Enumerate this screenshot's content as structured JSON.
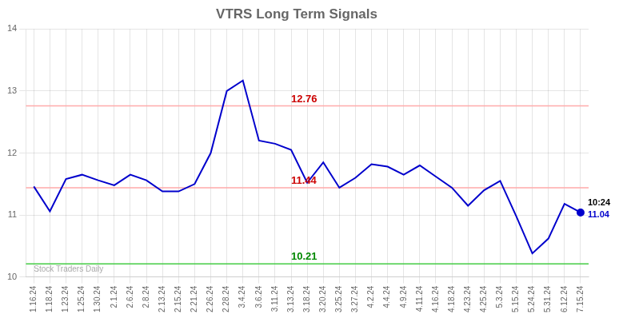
{
  "chart_data": {
    "type": "line",
    "title": "VTRS Long Term Signals",
    "categories": [
      "1.16.24",
      "1.18.24",
      "1.23.24",
      "1.25.24",
      "1.30.24",
      "2.1.24",
      "2.6.24",
      "2.8.24",
      "2.13.24",
      "2.15.24",
      "2.21.24",
      "2.26.24",
      "2.28.24",
      "3.4.24",
      "3.6.24",
      "3.11.24",
      "3.13.24",
      "3.18.24",
      "3.20.24",
      "3.25.24",
      "3.27.24",
      "4.2.24",
      "4.4.24",
      "4.9.24",
      "4.11.24",
      "4.16.24",
      "4.18.24",
      "4.23.24",
      "4.25.24",
      "5.3.24",
      "5.15.24",
      "5.24.24",
      "5.31.24",
      "6.12.24",
      "7.15.24"
    ],
    "values": [
      11.46,
      11.06,
      11.58,
      11.65,
      11.56,
      11.48,
      11.65,
      11.56,
      11.38,
      11.38,
      11.5,
      12.0,
      13.0,
      13.17,
      12.2,
      12.15,
      12.05,
      11.52,
      11.85,
      11.44,
      11.6,
      11.82,
      11.78,
      11.65,
      11.8,
      11.62,
      11.44,
      11.15,
      11.4,
      11.55,
      10.98,
      10.38,
      10.62,
      11.18,
      11.04
    ],
    "color": "#0000cc",
    "ylim": [
      10,
      14
    ],
    "yticks": [
      10,
      11,
      12,
      13,
      14
    ],
    "grid": true,
    "annotations": [
      {
        "type": "hline",
        "value": 12.76,
        "label": "12.76",
        "color": "#ffaaaa",
        "label_color": "#cc0000"
      },
      {
        "type": "hline",
        "value": 11.44,
        "label": "11.44",
        "color": "#ffaaaa",
        "label_color": "#cc0000"
      },
      {
        "type": "hline",
        "value": 10.21,
        "label": "10.21",
        "color": "#44cc44",
        "label_color": "#008800"
      },
      {
        "type": "end_label",
        "text": "10:24",
        "color": "#000000"
      },
      {
        "type": "end_label",
        "text": "11.04",
        "color": "#0000cc"
      },
      {
        "type": "watermark",
        "text": "Stock Traders Daily",
        "color": "#aaaaaa"
      }
    ]
  }
}
